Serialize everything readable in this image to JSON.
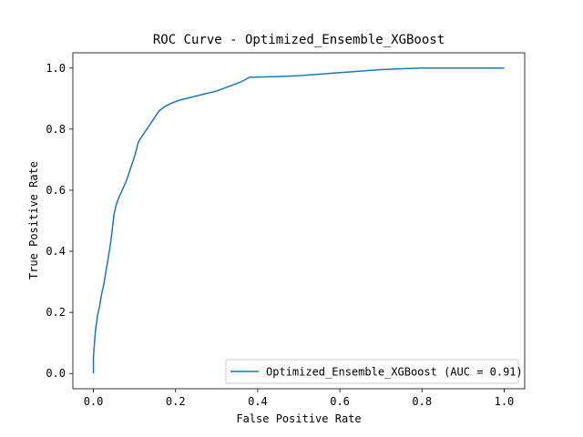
{
  "chart_data": {
    "type": "line",
    "title": "ROC Curve - Optimized_Ensemble_XGBoost",
    "xlabel": "False Positive Rate",
    "ylabel": "True Positive Rate",
    "xlim": [
      -0.05,
      1.05
    ],
    "ylim": [
      -0.05,
      1.05
    ],
    "x_ticks": [
      "0.0",
      "0.2",
      "0.4",
      "0.6",
      "0.8",
      "1.0"
    ],
    "y_ticks": [
      "0.0",
      "0.2",
      "0.4",
      "0.6",
      "0.8",
      "1.0"
    ],
    "grid": false,
    "legend_position": "lower-right",
    "series": [
      {
        "name": "Optimized_Ensemble_XGBoost (AUC = 0.91)",
        "color": "#1f77b4",
        "points": [
          [
            0.0,
            0.0
          ],
          [
            0.0,
            0.05
          ],
          [
            0.002,
            0.09
          ],
          [
            0.005,
            0.14
          ],
          [
            0.01,
            0.19
          ],
          [
            0.015,
            0.22
          ],
          [
            0.02,
            0.26
          ],
          [
            0.025,
            0.29
          ],
          [
            0.03,
            0.33
          ],
          [
            0.035,
            0.37
          ],
          [
            0.04,
            0.41
          ],
          [
            0.045,
            0.46
          ],
          [
            0.05,
            0.52
          ],
          [
            0.055,
            0.55
          ],
          [
            0.06,
            0.57
          ],
          [
            0.07,
            0.6
          ],
          [
            0.08,
            0.63
          ],
          [
            0.09,
            0.67
          ],
          [
            0.1,
            0.71
          ],
          [
            0.11,
            0.76
          ],
          [
            0.12,
            0.78
          ],
          [
            0.13,
            0.8
          ],
          [
            0.145,
            0.83
          ],
          [
            0.16,
            0.86
          ],
          [
            0.175,
            0.875
          ],
          [
            0.19,
            0.885
          ],
          [
            0.21,
            0.895
          ],
          [
            0.24,
            0.905
          ],
          [
            0.27,
            0.915
          ],
          [
            0.3,
            0.925
          ],
          [
            0.33,
            0.94
          ],
          [
            0.36,
            0.955
          ],
          [
            0.38,
            0.97
          ],
          [
            0.45,
            0.972
          ],
          [
            0.5,
            0.975
          ],
          [
            0.55,
            0.98
          ],
          [
            0.6,
            0.985
          ],
          [
            0.65,
            0.99
          ],
          [
            0.7,
            0.995
          ],
          [
            0.75,
            0.998
          ],
          [
            0.8,
            1.0
          ],
          [
            0.9,
            1.0
          ],
          [
            1.0,
            1.0
          ]
        ]
      }
    ]
  }
}
